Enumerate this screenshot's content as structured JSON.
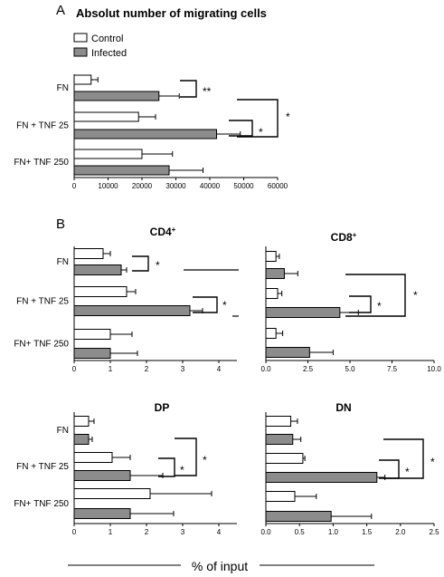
{
  "panel_labels": [
    "A",
    "B"
  ],
  "footer_label": "% of input",
  "legend": {
    "control": "Control",
    "infected": "Infected",
    "control_color": "#ffffff",
    "infected_color": "#8c8c8c"
  },
  "chart_data": [
    {
      "id": "A",
      "type": "bar",
      "orientation": "horizontal",
      "title": "Absolut number of migrating cells",
      "categories": [
        "FN",
        "FN + TNF 25",
        "FN+ TNF 250"
      ],
      "series": [
        {
          "name": "Control",
          "values": [
            5000,
            19000,
            20000
          ],
          "errors": [
            2000,
            5000,
            9000
          ]
        },
        {
          "name": "Infected",
          "values": [
            25000,
            42000,
            28000
          ],
          "errors": [
            6000,
            7000,
            10000
          ]
        }
      ],
      "xlim": [
        0,
        60000
      ],
      "xticks": [
        "0",
        "10000",
        "20000",
        "30000",
        "40000",
        "50000",
        "60000"
      ],
      "xtick_values": [
        0,
        10000,
        20000,
        30000,
        40000,
        50000,
        60000
      ],
      "significance": [
        {
          "between": "FN control vs FN infected",
          "label": "**"
        },
        {
          "between": "FN+TNF 25 control vs infected",
          "label": "*"
        },
        {
          "between": "FN infected vs FN+TNF 25 infected",
          "label": "*"
        }
      ]
    },
    {
      "id": "CD4",
      "type": "bar",
      "orientation": "horizontal",
      "title": "CD4",
      "title_sup": "+",
      "categories": [
        "FN",
        "FN + TNF 25",
        "FN+ TNF 250"
      ],
      "series": [
        {
          "name": "Control",
          "values": [
            0.8,
            1.45,
            1.0
          ],
          "errors": [
            0.2,
            0.25,
            0.6
          ]
        },
        {
          "name": "Infected",
          "values": [
            1.3,
            3.2,
            1.0
          ],
          "errors": [
            0.15,
            0.35,
            0.75
          ]
        }
      ],
      "xlim": [
        0,
        4.5
      ],
      "xticks": [
        "0",
        "1",
        "2",
        "3",
        "4"
      ],
      "xtick_values": [
        0,
        1,
        2,
        3,
        4
      ],
      "significance": [
        {
          "between": "FN control vs FN infected",
          "label": "*"
        },
        {
          "between": "FN+TNF 25 control vs infected",
          "label": "*"
        }
      ]
    },
    {
      "id": "CD8",
      "type": "bar",
      "orientation": "horizontal",
      "title": "CD8",
      "title_sup": "+",
      "categories": [
        "FN",
        "FN + TNF 25",
        "FN+ TNF 250"
      ],
      "series": [
        {
          "name": "Control",
          "values": [
            0.6,
            0.7,
            0.6
          ],
          "errors": [
            0.2,
            0.25,
            0.4
          ]
        },
        {
          "name": "Infected",
          "values": [
            1.1,
            4.4,
            2.6
          ],
          "errors": [
            0.8,
            1.1,
            1.4
          ]
        }
      ],
      "xlim": [
        0,
        10
      ],
      "xticks": [
        "0.0",
        "2.5",
        "5.0",
        "7.5",
        "10.0"
      ],
      "xtick_values": [
        0,
        2.5,
        5,
        7.5,
        10
      ],
      "significance": [
        {
          "between": "FN+TNF 25 control vs infected",
          "label": "*"
        },
        {
          "between": "FN infected vs FN+TNF 25 infected",
          "label": "*"
        }
      ]
    },
    {
      "id": "DP",
      "type": "bar",
      "orientation": "horizontal",
      "title": "DP",
      "categories": [
        "FN",
        "FN + TNF 25",
        "FN+ TNF 250"
      ],
      "series": [
        {
          "name": "Control",
          "values": [
            0.4,
            1.05,
            2.1
          ],
          "errors": [
            0.15,
            0.5,
            1.7
          ]
        },
        {
          "name": "Infected",
          "values": [
            0.4,
            1.55,
            1.55
          ],
          "errors": [
            0.1,
            0.9,
            1.2
          ]
        }
      ],
      "xlim": [
        0,
        4.5
      ],
      "xticks": [
        "0",
        "1",
        "2",
        "3",
        "4"
      ],
      "xtick_values": [
        0,
        1,
        2,
        3,
        4
      ],
      "significance": [
        {
          "between": "FN+TNF 25 control vs infected",
          "label": "*"
        },
        {
          "between": "FN infected vs FN+TNF 25 infected",
          "label": "*"
        }
      ]
    },
    {
      "id": "DN",
      "type": "bar",
      "orientation": "horizontal",
      "title": "DN",
      "categories": [
        "FN",
        "FN + TNF 25",
        "FN+ TNF 250"
      ],
      "series": [
        {
          "name": "Control",
          "values": [
            0.37,
            0.55,
            0.43
          ],
          "errors": [
            0.1,
            0.03,
            0.32
          ]
        },
        {
          "name": "Infected",
          "values": [
            0.4,
            1.65,
            0.97
          ],
          "errors": [
            0.12,
            0.12,
            0.6
          ]
        }
      ],
      "xlim": [
        0,
        2.5
      ],
      "xticks": [
        "0.0",
        "0.5",
        "1.0",
        "1.5",
        "2.0",
        "2.5"
      ],
      "xtick_values": [
        0,
        0.5,
        1,
        1.5,
        2,
        2.5
      ],
      "significance": [
        {
          "between": "FN+TNF 25 control vs infected",
          "label": "*"
        },
        {
          "between": "FN infected vs FN+TNF 25 infected",
          "label": "*"
        }
      ]
    }
  ]
}
